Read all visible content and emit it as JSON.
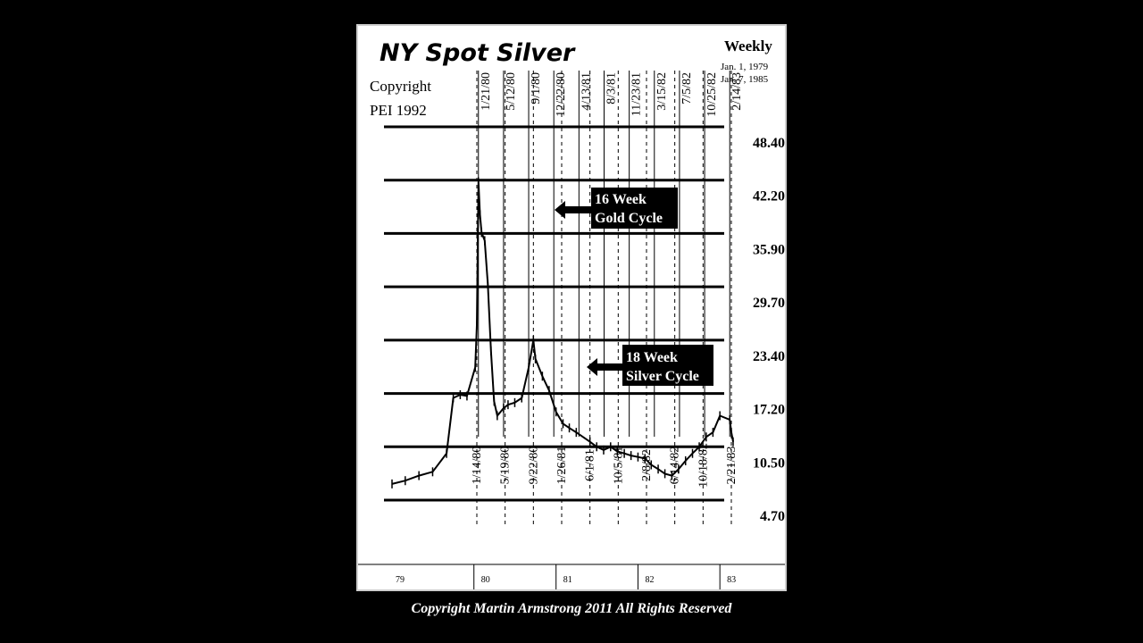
{
  "caption": "Copyright Martin Armstrong 2011 All Rights Reserved",
  "chart_data": {
    "type": "line",
    "title": "NY Spot Silver",
    "frequency": "Weekly",
    "date_range": [
      "Jan. 1, 1979",
      "Jan. 7, 1985"
    ],
    "copyright": [
      "Copyright",
      "PEI 1992"
    ],
    "y_scale": "log",
    "ylim": [
      4.7,
      48.4
    ],
    "yticks": [
      48.4,
      42.2,
      35.9,
      29.7,
      23.4,
      17.2,
      10.5,
      4.7
    ],
    "ytick_labels": [
      "48.40",
      "42.20",
      "35.90",
      "29.70",
      "23.40",
      "17.20",
      "10.50",
      "4.70"
    ],
    "year_labels": [
      "79",
      "80",
      "81",
      "82",
      "83"
    ],
    "top_dates": [
      "1/21/80",
      "5/12/80",
      "9/1/80",
      "12/22/80",
      "4/13/81",
      "8/3/81",
      "11/23/81",
      "3/15/82",
      "7/5/82",
      "10/25/82",
      "2/14/83"
    ],
    "bottom_dates": [
      "1/14/80",
      "5/19/80",
      "9/22/80",
      "1/26/81",
      "6/1/81",
      "10/5/81",
      "2/8/82",
      "6/14/82",
      "10/18/82",
      "2/21/83"
    ],
    "annotations": [
      {
        "text": [
          "16 Week",
          "Gold Cycle"
        ],
        "points_to": "top_dates"
      },
      {
        "text": [
          "18 Week",
          "Silver Cycle"
        ],
        "points_to": "bottom_dates"
      }
    ],
    "series": [
      {
        "x": [
          "1979-01",
          "1979-03",
          "1979-05",
          "1979-07",
          "1979-09",
          "1979-10",
          "1979-11",
          "1979-12",
          "1980-01-07",
          "1980-01-14",
          "1980-01-21",
          "1980-01-28",
          "1980-02-04",
          "1980-02-18",
          "1980-03-03",
          "1980-03-17",
          "1980-03-31",
          "1980-04-14",
          "1980-05-12",
          "1980-06",
          "1980-07",
          "1980-08",
          "1980-09-01",
          "1980-09-22",
          "1980-10",
          "1980-11",
          "1980-12",
          "1981-01",
          "1981-02",
          "1981-03",
          "1981-04",
          "1981-06",
          "1981-07",
          "1981-08",
          "1981-09",
          "1981-10",
          "1981-11",
          "1981-12",
          "1982-01",
          "1982-02",
          "1982-03",
          "1982-04",
          "1982-05",
          "1982-06",
          "1982-07",
          "1982-08",
          "1982-09",
          "1982-10",
          "1982-11",
          "1982-12",
          "1983-01",
          "1983-02-14",
          "1983-02-21",
          "1983-03"
        ],
        "values": [
          6.0,
          6.3,
          6.8,
          7.2,
          9.5,
          16.5,
          17.0,
          16.8,
          20.0,
          25.0,
          42.0,
          38.0,
          36.0,
          35.0,
          30.0,
          22.0,
          16.0,
          14.0,
          15.0,
          15.5,
          15.8,
          16.5,
          20.0,
          23.4,
          21.0,
          19.0,
          17.5,
          14.5,
          13.0,
          12.5,
          12.0,
          11.0,
          10.5,
          10.0,
          10.5,
          9.8,
          9.5,
          9.2,
          9.0,
          8.8,
          8.0,
          7.5,
          7.0,
          6.8,
          7.5,
          8.5,
          9.5,
          10.5,
          11.5,
          12.0,
          14.0,
          13.5,
          12.0,
          11.0
        ]
      }
    ],
    "grid": true
  }
}
